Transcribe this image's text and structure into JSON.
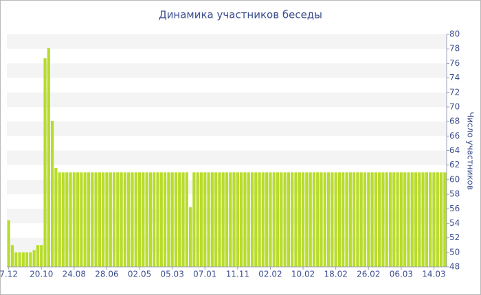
{
  "chart_data": {
    "type": "bar",
    "title": "Динамика участников беседы",
    "y_axis_label": "Число участников",
    "color": "#b8dc2c",
    "grid": true,
    "y_axis_side": "right",
    "ylim": [
      48,
      80
    ],
    "yticks": [
      48,
      50,
      52,
      54,
      56,
      58,
      60,
      62,
      64,
      66,
      68,
      70,
      72,
      74,
      76,
      78,
      80
    ],
    "categories": [
      "7.12",
      null,
      null,
      null,
      null,
      null,
      null,
      null,
      null,
      "20.10",
      null,
      null,
      null,
      null,
      null,
      null,
      null,
      null,
      "24.08",
      null,
      null,
      null,
      null,
      null,
      null,
      null,
      null,
      "28.06",
      null,
      null,
      null,
      null,
      null,
      null,
      null,
      null,
      "02.05",
      null,
      null,
      null,
      null,
      null,
      null,
      null,
      null,
      "05.03",
      null,
      null,
      null,
      null,
      null,
      null,
      null,
      null,
      "07.01",
      null,
      null,
      null,
      null,
      null,
      null,
      null,
      null,
      "11.11",
      null,
      null,
      null,
      null,
      null,
      null,
      null,
      null,
      "02.02",
      null,
      null,
      null,
      null,
      null,
      null,
      null,
      null,
      "10.02",
      null,
      null,
      null,
      null,
      null,
      null,
      null,
      null,
      "18.02",
      null,
      null,
      null,
      null,
      null,
      null,
      null,
      null,
      "26.02",
      null,
      null,
      null,
      null,
      null,
      null,
      null,
      null,
      "06.03",
      null,
      null,
      null,
      null,
      null,
      null,
      null,
      null,
      "14.03",
      null,
      null,
      null
    ],
    "values": [
      54.4,
      51,
      50,
      50,
      50,
      50,
      50,
      50.3,
      51,
      51,
      76.7,
      78.1,
      68.1,
      61.6,
      61,
      61,
      61,
      61,
      61,
      61,
      61,
      61,
      61,
      61,
      61,
      61,
      61,
      61,
      61,
      61,
      61,
      61,
      61,
      61,
      61,
      61,
      61,
      61,
      61,
      61,
      61,
      61,
      61,
      61,
      61,
      61,
      61,
      61,
      61,
      61,
      56.2,
      61,
      61,
      61,
      61,
      61,
      61,
      61,
      61,
      61,
      61,
      61,
      61,
      61,
      61,
      61,
      61,
      61,
      61,
      61,
      61,
      61,
      61,
      61,
      61,
      61,
      61,
      61,
      61,
      61,
      61,
      61,
      61,
      61,
      61,
      61,
      61,
      61,
      61,
      61,
      61,
      61,
      61,
      61,
      61,
      61,
      61,
      61,
      61,
      61,
      61,
      61,
      61,
      61,
      61,
      61,
      61,
      61,
      61,
      61,
      61,
      61,
      61,
      61,
      61,
      61,
      61,
      61,
      61,
      61,
      61
    ]
  }
}
